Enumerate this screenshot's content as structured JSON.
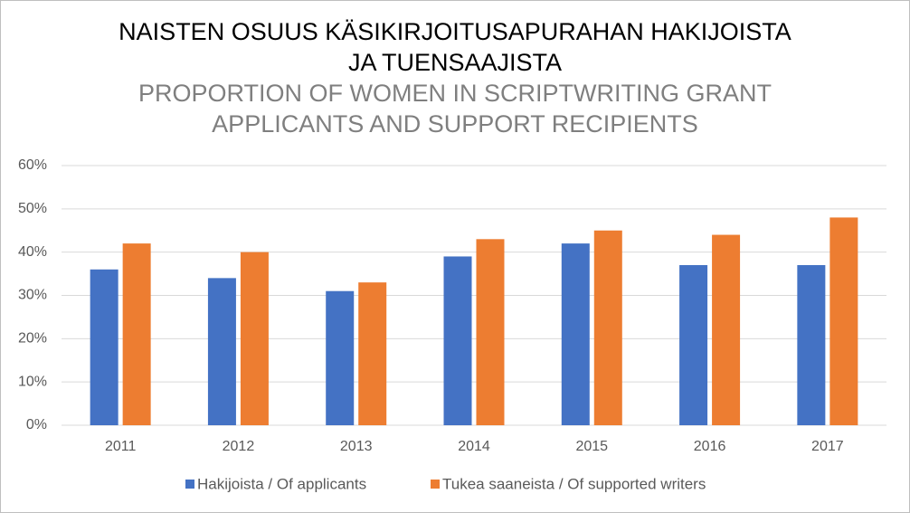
{
  "chart_data": {
    "type": "bar",
    "title": [
      "NAISTEN OSUUS KÄSIKIRJOITUSAPURAHAN HAKIJOISTA",
      "JA TUENSAAJISTA"
    ],
    "subtitle": [
      "PROPORTION OF WOMEN IN SCRIPTWRITING GRANT",
      "APPLICANTS AND SUPPORT RECIPIENTS"
    ],
    "categories": [
      "2011",
      "2012",
      "2013",
      "2014",
      "2015",
      "2016",
      "2017"
    ],
    "series": [
      {
        "name": "Hakijoista / Of applicants",
        "color": "#4472c4",
        "values": [
          36,
          34,
          31,
          39,
          42,
          37,
          37
        ]
      },
      {
        "name": "Tukea saaneista / Of supported writers",
        "color": "#ed7d31",
        "values": [
          42,
          40,
          33,
          43,
          45,
          44,
          48
        ]
      }
    ],
    "ylim": [
      0,
      60
    ],
    "yticks": [
      {
        "value": 0,
        "label": "0%"
      },
      {
        "value": 10,
        "label": "10%"
      },
      {
        "value": 20,
        "label": "20%"
      },
      {
        "value": 30,
        "label": "30%"
      },
      {
        "value": 40,
        "label": "40%"
      },
      {
        "value": 50,
        "label": "50%"
      },
      {
        "value": 60,
        "label": "60%"
      }
    ],
    "grid": true,
    "legend": "bottom"
  }
}
